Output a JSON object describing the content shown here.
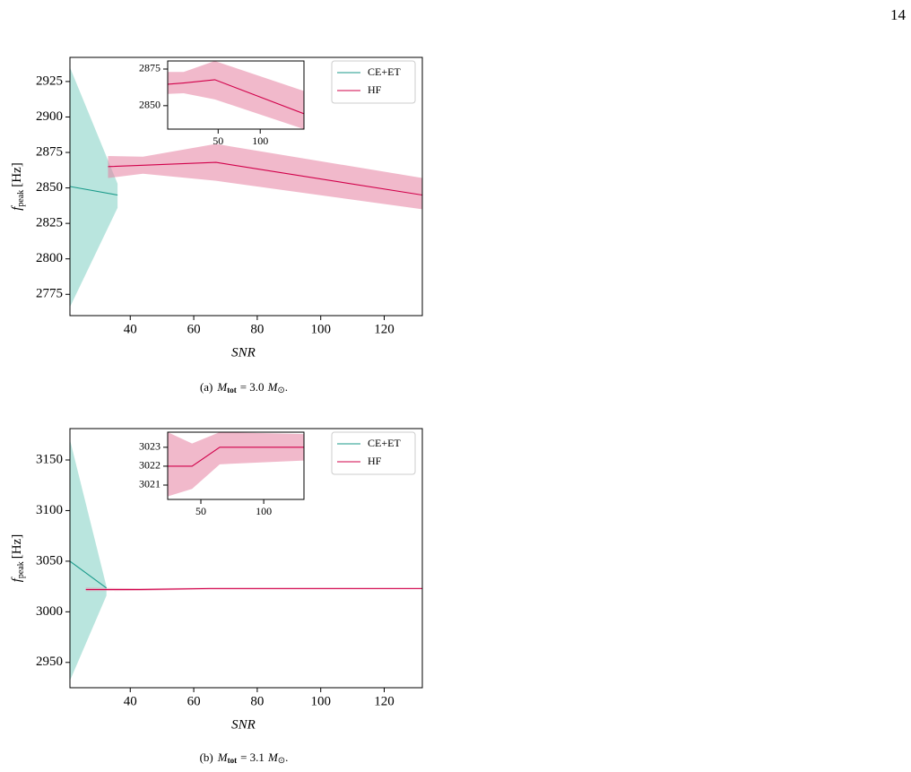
{
  "page_number": "14",
  "chart_data": [
    {
      "type": "line",
      "xlabel": "SNR",
      "ylabel": [
        "f",
        "peak",
        "[Hz]"
      ],
      "caption": [
        "(a)",
        "M",
        "tot",
        "= 3.0",
        "M",
        "⊙",
        "."
      ],
      "xlim": [
        21,
        132
      ],
      "xticks": [
        40,
        60,
        80,
        100,
        120
      ],
      "ylim": [
        2760,
        2942
      ],
      "yticks": [
        2775,
        2800,
        2825,
        2850,
        2875,
        2900,
        2925
      ],
      "legend": "upper right",
      "series": [
        {
          "name": "CE+ET",
          "color": "#1a9a8a",
          "band_color": "#7fcfc3",
          "x": [
            21,
            36
          ],
          "values": [
            2851,
            2845
          ],
          "upper": [
            2935,
            2853
          ],
          "lower": [
            2766,
            2836
          ]
        },
        {
          "name": "HF",
          "color": "#d1004a",
          "band_color": "#e67fa0",
          "x": [
            33,
            44,
            67,
            132
          ],
          "values": [
            2865,
            2866,
            2868,
            2845
          ],
          "upper": [
            2872.5,
            2872,
            2881,
            2857
          ],
          "lower": [
            2857,
            2860,
            2855,
            2835
          ]
        }
      ],
      "inset": {
        "xlim": [
          -10,
          152
        ],
        "xticks": [
          50,
          100
        ],
        "ylim": [
          2834,
          2880.5
        ],
        "yticks": [
          2850,
          2875
        ],
        "series": [
          {
            "color": "#d1004a",
            "band_color": "#e67fa0",
            "x": [
              -10,
              9,
              46,
              152
            ],
            "values": [
              2864.6,
              2865.5,
              2867.7,
              2844.5
            ],
            "upper": [
              2873,
              2873,
              2880.5,
              2860
            ],
            "lower": [
              2858,
              2858.5,
              2854.3,
              2834
            ]
          }
        ]
      }
    },
    {
      "type": "line",
      "xlabel": "SNR",
      "ylabel": [
        "f",
        "peak",
        "[Hz]"
      ],
      "caption": [
        "(b)",
        "M",
        "tot",
        "= 3.1",
        "M",
        "⊙",
        "."
      ],
      "xlim": [
        21,
        132
      ],
      "xticks": [
        40,
        60,
        80,
        100,
        120
      ],
      "ylim": [
        2925,
        3181
      ],
      "yticks": [
        2950,
        3000,
        3050,
        3100,
        3150
      ],
      "legend": "upper right",
      "series": [
        {
          "name": "CE+ET",
          "color": "#1a9a8a",
          "band_color": "#7fcfc3",
          "x": [
            21,
            32.5
          ],
          "values": [
            3050,
            3023.5
          ],
          "upper": [
            3170,
            3025
          ],
          "lower": [
            2932,
            3016
          ]
        },
        {
          "name": "HF",
          "color": "#d1004a",
          "band_color": "#e67fa0",
          "x": [
            26,
            43,
            65,
            132
          ],
          "values": [
            3022,
            3022,
            3023,
            3023
          ],
          "upper": [
            3023.8,
            3023.2,
            3023.8,
            3023.7
          ],
          "lower": [
            3020.4,
            3020.8,
            3022.1,
            3022.3
          ]
        }
      ],
      "inset": {
        "xlim": [
          23.6,
          132
        ],
        "xticks": [
          50,
          100
        ],
        "ylim": [
          3020.24,
          3023.8
        ],
        "yticks": [
          3021,
          3022,
          3023
        ],
        "series": [
          {
            "color": "#d1004a",
            "band_color": "#e67fa0",
            "x": [
              23.6,
              43,
              65,
              132
            ],
            "values": [
              3022,
              3022,
              3023,
              3023
            ],
            "upper": [
              3023.8,
              3023.2,
              3023.8,
              3023.7
            ],
            "lower": [
              3020.4,
              3020.8,
              3022.1,
              3022.3
            ]
          }
        ]
      }
    }
  ]
}
